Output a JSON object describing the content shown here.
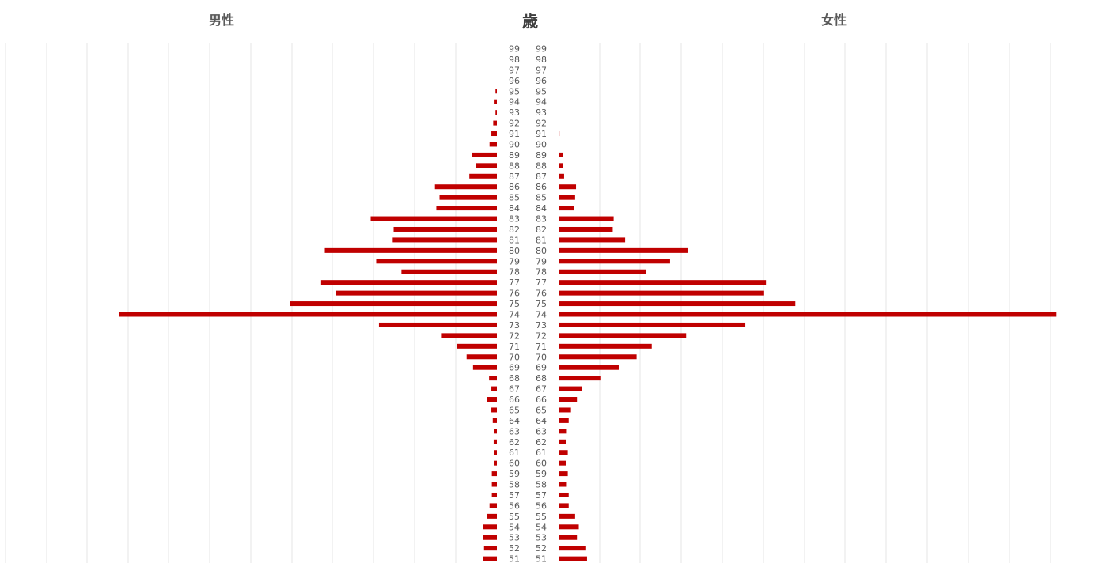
{
  "chart_data": {
    "type": "bar",
    "orientation": "horizontal-population-pyramid",
    "title_left": "男性",
    "title_center": "歳",
    "title_right": "女性",
    "ages": [
      99,
      98,
      97,
      96,
      95,
      94,
      93,
      92,
      91,
      90,
      89,
      88,
      87,
      86,
      85,
      84,
      83,
      82,
      81,
      80,
      79,
      78,
      77,
      76,
      75,
      74,
      73,
      72,
      71,
      70,
      69,
      68,
      67,
      66,
      65,
      64,
      63,
      62,
      61,
      60,
      59,
      58,
      57,
      56,
      55,
      54,
      53,
      52,
      51
    ],
    "series": [
      {
        "name": "男性",
        "values": [
          0,
          0,
          0,
          0,
          0.3,
          0.5,
          0.3,
          0.8,
          1.2,
          1.6,
          5.5,
          4.5,
          6.0,
          13.5,
          12.5,
          13.2,
          27.5,
          22.5,
          22.7,
          37.5,
          26.3,
          20.8,
          38.3,
          35.0,
          45.1,
          82.3,
          25.7,
          12.0,
          8.7,
          6.6,
          5.2,
          1.7,
          1.2,
          2.1,
          1.2,
          0.9,
          0.6,
          0.7,
          0.6,
          0.6,
          1.1,
          1.1,
          1.1,
          1.6,
          2.1,
          3.0,
          3.0,
          2.8,
          3.0
        ],
        "color": "#c00000"
      },
      {
        "name": "女性",
        "values": [
          0,
          0,
          0,
          0,
          0,
          0,
          0,
          0,
          0.2,
          0,
          1.0,
          1.0,
          1.2,
          3.8,
          3.6,
          3.3,
          12.0,
          11.8,
          14.5,
          28.1,
          24.3,
          19.1,
          45.2,
          44.8,
          51.6,
          108.5,
          40.7,
          27.8,
          20.3,
          17.0,
          13.1,
          9.1,
          5.1,
          4.0,
          2.7,
          2.2,
          1.8,
          1.7,
          2.0,
          1.6,
          2.0,
          1.8,
          2.2,
          2.2,
          3.6,
          4.4,
          4.0,
          6.0,
          6.2
        ],
        "color": "#c00000"
      }
    ],
    "grid": true,
    "gridline_color": "#e4e4e4"
  }
}
